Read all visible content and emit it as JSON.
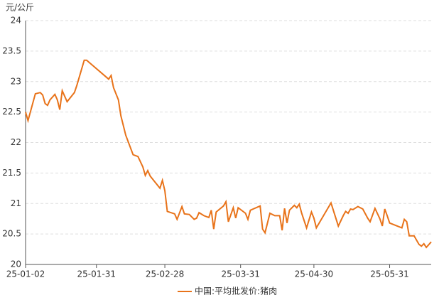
{
  "chart_data": {
    "type": "line",
    "y_label": "元/公斤",
    "x": [
      "25-01-02",
      "25-01-03",
      "25-01-06",
      "25-01-08",
      "25-01-09",
      "25-01-10",
      "25-01-11",
      "25-01-12",
      "25-01-14",
      "25-01-15",
      "25-01-16",
      "25-01-17",
      "25-01-19",
      "25-01-22",
      "25-01-23",
      "25-01-26",
      "25-01-27",
      "25-02-05",
      "25-02-06",
      "25-02-07",
      "25-02-09",
      "25-02-10",
      "25-02-12",
      "25-02-15",
      "25-02-17",
      "25-02-19",
      "25-02-20",
      "25-02-21",
      "25-02-22",
      "25-02-24",
      "25-02-26",
      "25-02-27",
      "25-02-28",
      "25-03-01",
      "25-03-04",
      "25-03-05",
      "25-03-07",
      "25-03-08",
      "25-03-10",
      "25-03-12",
      "25-03-13",
      "25-03-14",
      "25-03-16",
      "25-03-18",
      "25-03-19",
      "25-03-20",
      "25-03-21",
      "25-03-24",
      "25-03-25",
      "25-03-26",
      "25-03-28",
      "25-03-29",
      "25-03-30",
      "25-04-02",
      "25-04-03",
      "25-04-04",
      "25-04-08",
      "25-04-09",
      "25-04-10",
      "25-04-12",
      "25-04-14",
      "25-04-16",
      "25-04-17",
      "25-04-18",
      "25-04-19",
      "25-04-20",
      "25-04-21",
      "25-04-22",
      "25-04-23",
      "25-04-24",
      "25-04-25",
      "25-04-27",
      "25-04-29",
      "25-04-30",
      "25-05-01",
      "25-05-07",
      "25-05-10",
      "25-05-12",
      "25-05-13",
      "25-05-14",
      "25-05-15",
      "25-05-16",
      "25-05-18",
      "25-05-20",
      "25-05-22",
      "25-05-23",
      "25-05-25",
      "25-05-27",
      "25-05-28",
      "25-05-29",
      "25-05-30",
      "25-05-31",
      "25-06-05",
      "25-06-06",
      "25-06-07",
      "25-06-08",
      "25-06-10",
      "25-06-12",
      "25-06-13",
      "25-06-14",
      "25-06-15",
      "25-06-17"
    ],
    "series": [
      {
        "name": "中国:平均批发价:猪肉",
        "color": "#e8731a",
        "values": [
          22.5,
          22.36,
          22.8,
          22.82,
          22.78,
          22.64,
          22.61,
          22.7,
          22.79,
          22.7,
          22.54,
          22.85,
          22.67,
          22.82,
          22.94,
          23.35,
          23.35,
          23.04,
          23.1,
          22.9,
          22.7,
          22.44,
          22.12,
          21.8,
          21.77,
          21.6,
          21.46,
          21.54,
          21.45,
          21.35,
          21.25,
          21.38,
          21.21,
          20.87,
          20.83,
          20.74,
          20.95,
          20.83,
          20.82,
          20.74,
          20.76,
          20.85,
          20.8,
          20.77,
          20.89,
          20.58,
          20.86,
          20.96,
          21.03,
          20.7,
          20.93,
          20.76,
          20.93,
          20.84,
          20.74,
          20.89,
          20.96,
          20.58,
          20.52,
          20.84,
          20.8,
          20.8,
          20.56,
          20.92,
          20.68,
          20.89,
          20.93,
          20.97,
          20.93,
          20.99,
          20.84,
          20.6,
          20.86,
          20.76,
          20.6,
          21.01,
          20.63,
          20.8,
          20.87,
          20.84,
          20.91,
          20.9,
          20.95,
          20.91,
          20.76,
          20.7,
          20.92,
          20.75,
          20.63,
          20.91,
          20.8,
          20.68,
          20.6,
          20.74,
          20.7,
          20.47,
          20.47,
          20.33,
          20.3,
          20.34,
          20.28,
          20.37
        ]
      }
    ],
    "xlim": [
      "25-01-02",
      "25-06-17"
    ],
    "xticks": [
      "25-01-02",
      "25-01-31",
      "25-02-28",
      "25-03-31",
      "25-04-30",
      "25-05-31"
    ],
    "ylim": [
      20,
      24
    ],
    "yticks": [
      20,
      20.5,
      21,
      21.5,
      22,
      22.5,
      23,
      23.5,
      24
    ],
    "grid": true
  }
}
